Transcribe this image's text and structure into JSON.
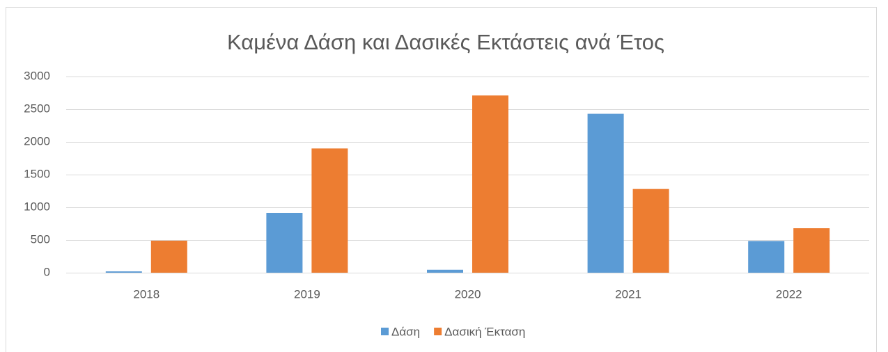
{
  "chart_data": {
    "type": "bar",
    "title": "Καμένα Δάση και Δασικές Εκτάστεις ανά Έτος",
    "categories": [
      "2018",
      "2019",
      "2020",
      "2021",
      "2022"
    ],
    "series": [
      {
        "name": "Δάση",
        "color": "#5b9bd5",
        "values": [
          20,
          915,
          45,
          2430,
          485
        ]
      },
      {
        "name": "Δασική Έκταση",
        "color": "#ed7d31",
        "values": [
          490,
          1900,
          2710,
          1280,
          680
        ]
      }
    ],
    "ylim": [
      0,
      3000
    ],
    "yticks": [
      0,
      500,
      1000,
      1500,
      2000,
      2500,
      3000
    ],
    "grid": true,
    "legend": "bottom"
  }
}
